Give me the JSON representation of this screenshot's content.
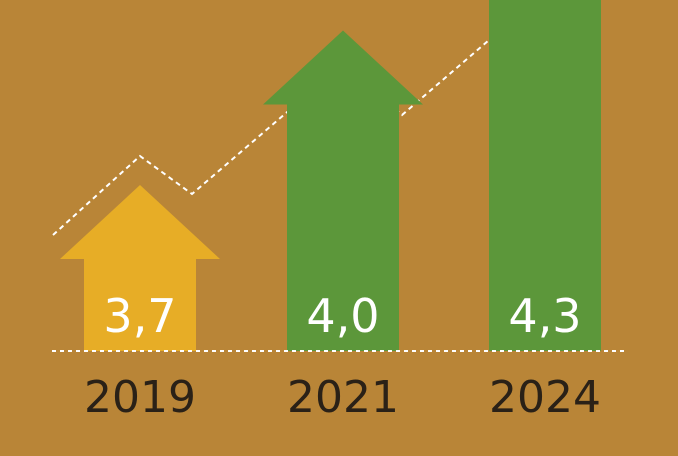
{
  "colors": {
    "background": "#b98537",
    "highlight": "#e7ad26",
    "arrow": "#5c973a",
    "text_on_bar": "#ffffff",
    "year_text": "#2a2117",
    "trend_line": "#ffffff"
  },
  "chart_data": {
    "type": "bar",
    "style": "upward-arrows",
    "categories": [
      "2019",
      "2021",
      "2024"
    ],
    "values": [
      3.7,
      4.0,
      4.3
    ],
    "value_labels": [
      "3,7",
      "4,0",
      "4,3"
    ],
    "title": "",
    "xlabel": "",
    "ylabel": "",
    "grid": false,
    "legend": "none",
    "trend_line": "dashed zigzag arrow rising above bars"
  }
}
